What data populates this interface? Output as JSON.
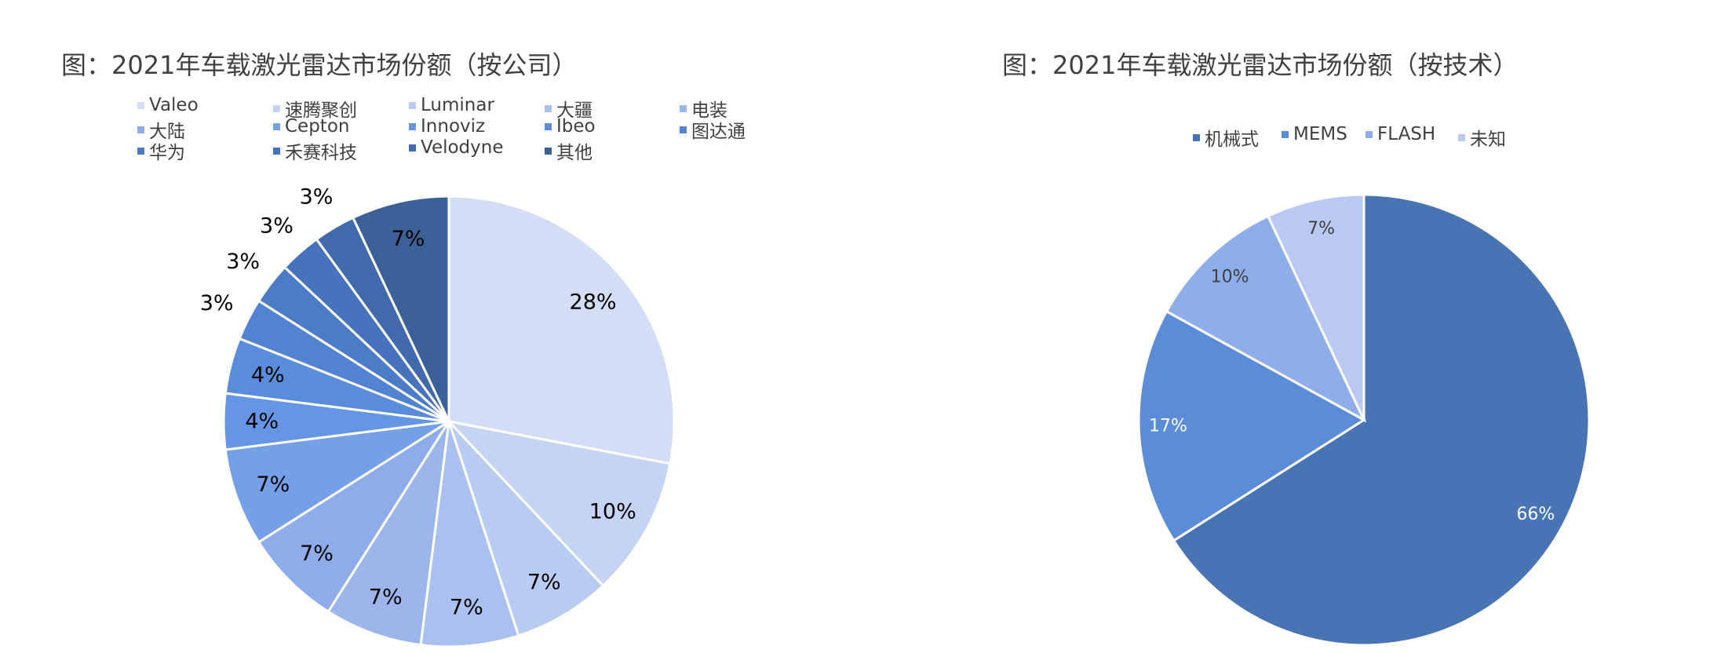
{
  "chart_data": [
    {
      "type": "pie",
      "title": "图：2021年车载激光雷达市场份额（按公司）",
      "slices": [
        {
          "label": "Valeo",
          "value": 28,
          "display": "28%",
          "color": "#d3ddf6"
        },
        {
          "label": "速腾聚创",
          "value": 10,
          "display": "10%",
          "color": "#c6d4f3"
        },
        {
          "label": "Luminar",
          "value": 7,
          "display": "7%",
          "color": "#b8cbf0"
        },
        {
          "label": "大疆",
          "value": 7,
          "display": "7%",
          "color": "#aac0ee"
        },
        {
          "label": "电装",
          "value": 7,
          "display": "7%",
          "color": "#9cb6ec"
        },
        {
          "label": "大陆",
          "value": 7,
          "display": "7%",
          "color": "#8facea"
        },
        {
          "label": "Cepton",
          "value": 7,
          "display": "7%",
          "color": "#74a0e8"
        },
        {
          "label": "Innoviz",
          "value": 4,
          "display": "4%",
          "color": "#6596e3"
        },
        {
          "label": "Ibeo",
          "value": 4,
          "display": "4%",
          "color": "#5a8cdc"
        },
        {
          "label": "图达通",
          "value": 3,
          "display": "3%",
          "color": "#5283d2"
        },
        {
          "label": "华为",
          "value": 3,
          "display": "3%",
          "color": "#4c7bc8"
        },
        {
          "label": "禾赛科技",
          "value": 3,
          "display": "3%",
          "color": "#4673bb"
        },
        {
          "label": "Velodyne",
          "value": 3,
          "display": "3%",
          "color": "#416aad"
        },
        {
          "label": "其他",
          "value": 7,
          "display": "7%",
          "color": "#3b6198"
        }
      ],
      "legend": "top"
    },
    {
      "type": "pie",
      "title": "图：2021年车载激光雷达市场份额（按技术）",
      "slices": [
        {
          "label": "机械式",
          "value": 66,
          "display": "66%",
          "color": "#4874b4"
        },
        {
          "label": "MEMS",
          "value": 17,
          "display": "17%",
          "color": "#5b8cd8"
        },
        {
          "label": "FLASH",
          "value": 10,
          "display": "10%",
          "color": "#8eaee9"
        },
        {
          "label": "未知",
          "value": 7,
          "display": "7%",
          "color": "#b9c9f2"
        }
      ],
      "legend": "top"
    }
  ]
}
